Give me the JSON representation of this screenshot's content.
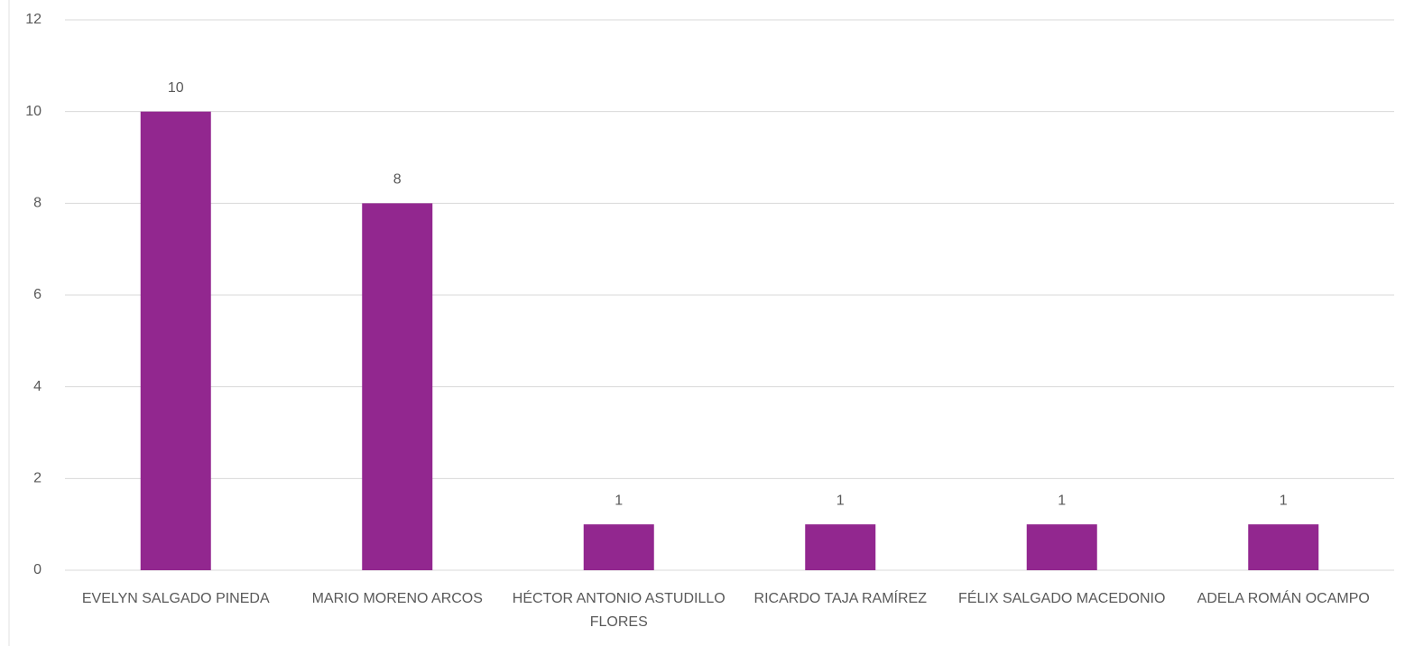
{
  "chart_data": {
    "type": "bar",
    "categories": [
      "EVELYN SALGADO PINEDA",
      "MARIO MORENO ARCOS",
      "HÉCTOR ANTONIO ASTUDILLO FLORES",
      "RICARDO TAJA RAMÍREZ",
      "FÉLIX SALGADO MACEDONIO",
      "ADELA ROMÁN OCAMPO"
    ],
    "values": [
      10,
      8,
      1,
      1,
      1,
      1
    ],
    "color": "#92278f",
    "ylim": [
      0,
      12
    ],
    "yticks": [
      0,
      2,
      4,
      6,
      8,
      10,
      12
    ],
    "grid": true
  }
}
